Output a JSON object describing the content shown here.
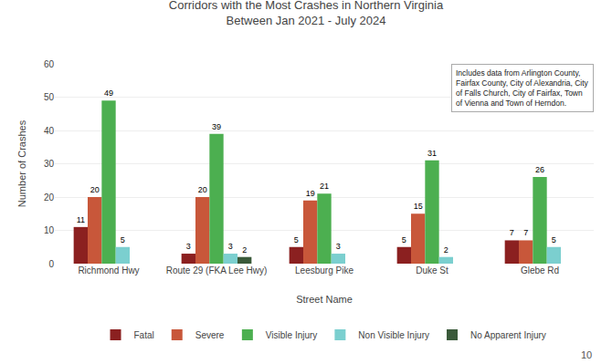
{
  "chart_data": {
    "type": "bar",
    "title": "Corridors with the Most Crashes in Northern Virginia\nBetween Jan 2021 - July 2024",
    "xlabel": "Street Name",
    "ylabel": "Number of Crashes",
    "annotations": [
      "Includes data from Arlington County,\nFairfax County, City of Alexandria, City\nof Falls Church, City of Fairfax, Town\nof Vienna and Town of Herndon.",
      "10"
    ],
    "categories": [
      "Richmond Hwy",
      "Route 29 (FKA Lee Hwy)",
      "Leesburg Pike",
      "Duke St",
      "Glebe Rd"
    ],
    "series": [
      {
        "name": "Fatal",
        "color": "#8B2020",
        "values": [
          11,
          3,
          5,
          5,
          7
        ]
      },
      {
        "name": "Severe",
        "color": "#C8573A",
        "values": [
          20,
          20,
          19,
          15,
          7
        ]
      },
      {
        "name": "Visible Injury",
        "color": "#4CAF50",
        "values": [
          49,
          39,
          21,
          31,
          26
        ]
      },
      {
        "name": "Non Visible Injury",
        "color": "#7BCFCF",
        "values": [
          5,
          3,
          3,
          2,
          5
        ]
      },
      {
        "name": "No Apparent Injury",
        "color": "#3A5A3A",
        "values": [
          0,
          2,
          0,
          0,
          0
        ]
      }
    ],
    "ylim": [
      0,
      60
    ],
    "yticks": [
      0,
      10,
      20,
      30,
      40,
      50,
      60
    ],
    "grid": true,
    "legend": "bottom",
    "data_labels": true
  }
}
